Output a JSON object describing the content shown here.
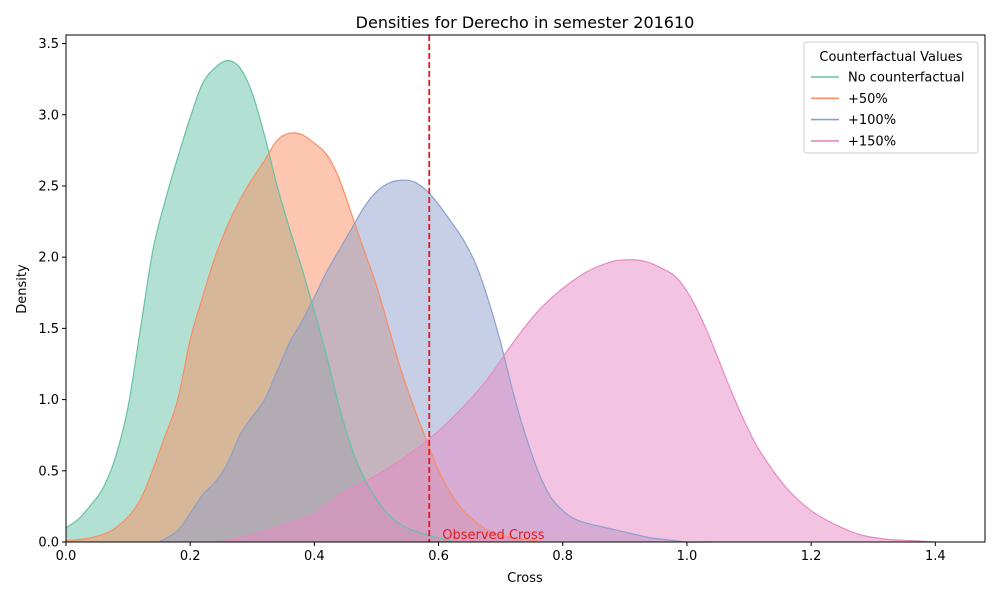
{
  "chart_data": {
    "type": "area",
    "title": "Densities for Derecho in semester 201610",
    "xlabel": "Cross",
    "ylabel": "Density",
    "xlim": [
      0.0,
      1.48
    ],
    "ylim": [
      0.0,
      3.56
    ],
    "xticks": [
      "0.0",
      "0.2",
      "0.4",
      "0.6",
      "0.8",
      "1.0",
      "1.2",
      "1.4"
    ],
    "xtick_values": [
      0.0,
      0.2,
      0.4,
      0.6,
      0.8,
      1.0,
      1.2,
      1.4
    ],
    "yticks": [
      "0.0",
      "0.5",
      "1.0",
      "1.5",
      "2.0",
      "2.5",
      "3.0",
      "3.5"
    ],
    "ytick_values": [
      0.0,
      0.5,
      1.0,
      1.5,
      2.0,
      2.5,
      3.0,
      3.5
    ],
    "grid": false,
    "legend": {
      "title": "Counterfactual Values",
      "placement": "top-right"
    },
    "reference_line": {
      "x": 0.585,
      "color": "#e31a1c",
      "style": "dashed",
      "label": "Observed Cross"
    },
    "series": [
      {
        "name": "No counterfactual",
        "color": "#66c2a5",
        "x": [
          0.0,
          0.02,
          0.04,
          0.06,
          0.08,
          0.1,
          0.12,
          0.14,
          0.16,
          0.18,
          0.2,
          0.22,
          0.24,
          0.26,
          0.28,
          0.3,
          0.32,
          0.34,
          0.36,
          0.38,
          0.4,
          0.42,
          0.44,
          0.46,
          0.48,
          0.5,
          0.52,
          0.54,
          0.56,
          0.58,
          0.6,
          0.62
        ],
        "y": [
          0.1,
          0.16,
          0.26,
          0.38,
          0.6,
          0.95,
          1.5,
          2.05,
          2.4,
          2.7,
          2.98,
          3.22,
          3.33,
          3.38,
          3.33,
          3.15,
          2.85,
          2.5,
          2.2,
          1.92,
          1.62,
          1.3,
          0.95,
          0.66,
          0.45,
          0.3,
          0.19,
          0.12,
          0.08,
          0.05,
          0.03,
          0.01
        ]
      },
      {
        "name": "+50%",
        "color": "#fc8d62",
        "x": [
          0.0,
          0.04,
          0.08,
          0.12,
          0.16,
          0.18,
          0.2,
          0.22,
          0.24,
          0.26,
          0.28,
          0.3,
          0.32,
          0.34,
          0.36,
          0.38,
          0.4,
          0.42,
          0.44,
          0.46,
          0.48,
          0.5,
          0.52,
          0.54,
          0.56,
          0.58,
          0.6,
          0.62,
          0.64,
          0.66,
          0.68,
          0.7,
          0.72,
          0.76
        ],
        "y": [
          0.01,
          0.03,
          0.1,
          0.3,
          0.75,
          1.0,
          1.42,
          1.72,
          2.0,
          2.22,
          2.4,
          2.55,
          2.68,
          2.82,
          2.87,
          2.86,
          2.8,
          2.72,
          2.55,
          2.3,
          2.05,
          1.8,
          1.5,
          1.2,
          0.95,
          0.72,
          0.5,
          0.34,
          0.22,
          0.14,
          0.08,
          0.05,
          0.03,
          0.01
        ]
      },
      {
        "name": "+100%",
        "color": "#8da0cb",
        "x": [
          0.15,
          0.18,
          0.2,
          0.22,
          0.24,
          0.26,
          0.28,
          0.3,
          0.32,
          0.34,
          0.36,
          0.38,
          0.4,
          0.42,
          0.44,
          0.46,
          0.48,
          0.5,
          0.52,
          0.54,
          0.56,
          0.58,
          0.6,
          0.62,
          0.64,
          0.66,
          0.68,
          0.7,
          0.72,
          0.74,
          0.76,
          0.78,
          0.8,
          0.82,
          0.84,
          0.86,
          0.88,
          0.9,
          0.92,
          0.94,
          0.96,
          0.98,
          1.0,
          1.04
        ],
        "y": [
          0.0,
          0.08,
          0.2,
          0.33,
          0.42,
          0.55,
          0.75,
          0.88,
          1.0,
          1.2,
          1.4,
          1.55,
          1.72,
          1.9,
          2.05,
          2.2,
          2.35,
          2.46,
          2.52,
          2.54,
          2.53,
          2.47,
          2.37,
          2.25,
          2.12,
          1.95,
          1.7,
          1.4,
          1.05,
          0.75,
          0.5,
          0.32,
          0.22,
          0.16,
          0.13,
          0.11,
          0.09,
          0.07,
          0.05,
          0.03,
          0.02,
          0.01,
          0.0,
          0.0
        ]
      },
      {
        "name": "+150%",
        "color": "#e78ac3",
        "x": [
          0.25,
          0.3,
          0.35,
          0.4,
          0.44,
          0.48,
          0.52,
          0.56,
          0.6,
          0.64,
          0.68,
          0.72,
          0.76,
          0.8,
          0.84,
          0.88,
          0.9,
          0.92,
          0.94,
          0.96,
          0.98,
          1.0,
          1.02,
          1.04,
          1.06,
          1.08,
          1.1,
          1.12,
          1.16,
          1.2,
          1.24,
          1.28,
          1.32,
          1.36,
          1.4
        ],
        "y": [
          0.0,
          0.05,
          0.12,
          0.2,
          0.33,
          0.42,
          0.52,
          0.64,
          0.78,
          0.95,
          1.15,
          1.4,
          1.62,
          1.78,
          1.9,
          1.97,
          1.98,
          1.98,
          1.96,
          1.92,
          1.87,
          1.76,
          1.6,
          1.4,
          1.18,
          0.97,
          0.78,
          0.62,
          0.38,
          0.22,
          0.12,
          0.05,
          0.02,
          0.01,
          0.0
        ]
      }
    ]
  }
}
